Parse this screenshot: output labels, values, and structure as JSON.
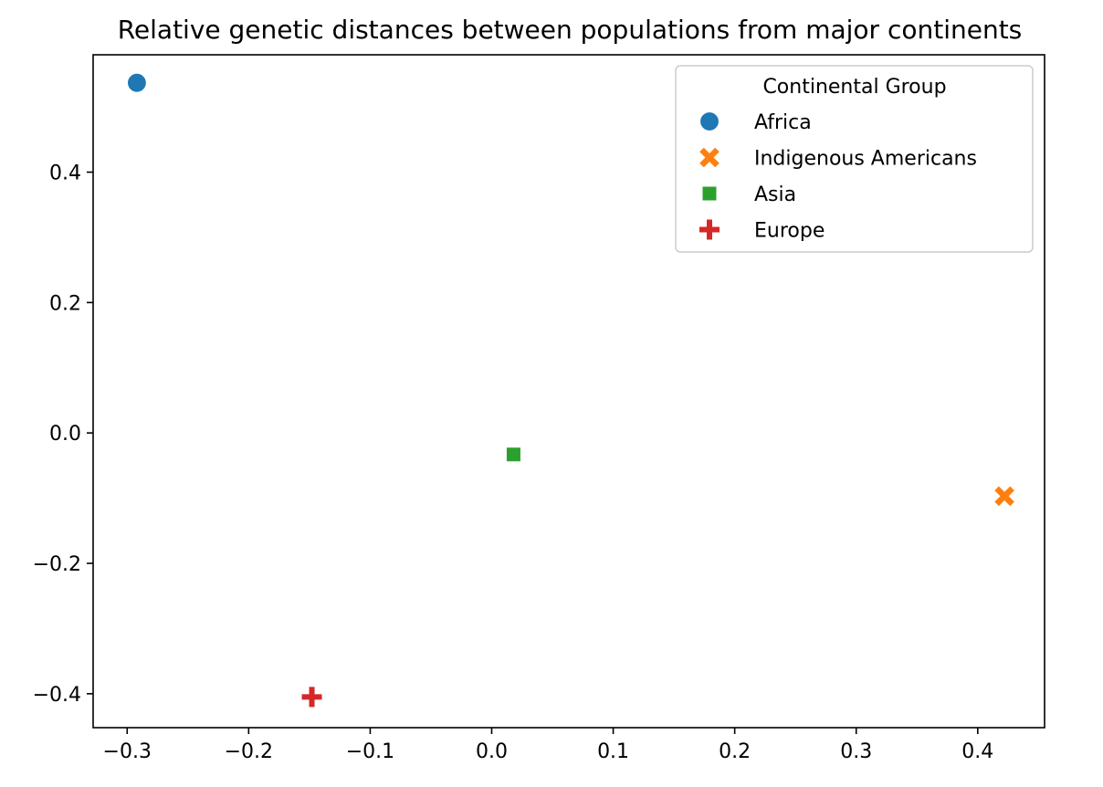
{
  "chart_data": {
    "type": "scatter",
    "title": "Relative genetic distances between populations from major continents",
    "xlabel": "",
    "ylabel": "",
    "xlim": [
      -0.328,
      0.455
    ],
    "ylim": [
      -0.452,
      0.58
    ],
    "x_ticks": [
      -0.3,
      -0.2,
      -0.1,
      0.0,
      0.1,
      0.2,
      0.3,
      0.4
    ],
    "x_tick_labels": [
      "−0.3",
      "−0.2",
      "−0.1",
      "0.0",
      "0.1",
      "0.2",
      "0.3",
      "0.4"
    ],
    "y_ticks": [
      -0.4,
      -0.2,
      0.0,
      0.2,
      0.4
    ],
    "y_tick_labels": [
      "−0.4",
      "−0.2",
      "0.0",
      "0.2",
      "0.4"
    ],
    "grid": false,
    "legend": {
      "title": "Continental Group",
      "placement": "top-right"
    },
    "series": [
      {
        "name": "Africa",
        "marker": "circle",
        "color": "#1f77b4",
        "x": [
          -0.292
        ],
        "y": [
          0.537
        ]
      },
      {
        "name": "Indigenous Americans",
        "marker": "x",
        "color": "#ff7f0e",
        "x": [
          0.422
        ],
        "y": [
          -0.097
        ]
      },
      {
        "name": "Asia",
        "marker": "square",
        "color": "#2ca02c",
        "x": [
          0.018
        ],
        "y": [
          -0.033
        ]
      },
      {
        "name": "Europe",
        "marker": "plus",
        "color": "#d62728",
        "x": [
          -0.148
        ],
        "y": [
          -0.405
        ]
      }
    ]
  }
}
